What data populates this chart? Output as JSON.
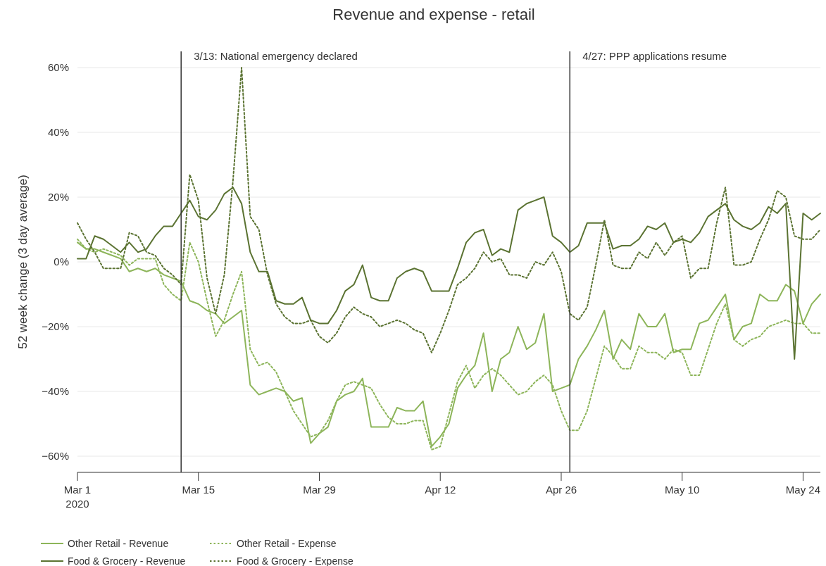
{
  "chart_data": {
    "type": "line",
    "title": "Revenue and expense - retail",
    "ylabel": "52 week change (3 day average)",
    "x": [
      "2020-03-01",
      "2020-03-02",
      "2020-03-03",
      "2020-03-04",
      "2020-03-05",
      "2020-03-06",
      "2020-03-07",
      "2020-03-08",
      "2020-03-09",
      "2020-03-10",
      "2020-03-11",
      "2020-03-12",
      "2020-03-13",
      "2020-03-14",
      "2020-03-15",
      "2020-03-16",
      "2020-03-17",
      "2020-03-18",
      "2020-03-19",
      "2020-03-20",
      "2020-03-21",
      "2020-03-22",
      "2020-03-23",
      "2020-03-24",
      "2020-03-25",
      "2020-03-26",
      "2020-03-27",
      "2020-03-28",
      "2020-03-29",
      "2020-03-30",
      "2020-03-31",
      "2020-04-01",
      "2020-04-02",
      "2020-04-03",
      "2020-04-04",
      "2020-04-05",
      "2020-04-06",
      "2020-04-07",
      "2020-04-08",
      "2020-04-09",
      "2020-04-10",
      "2020-04-11",
      "2020-04-12",
      "2020-04-13",
      "2020-04-14",
      "2020-04-15",
      "2020-04-16",
      "2020-04-17",
      "2020-04-18",
      "2020-04-19",
      "2020-04-20",
      "2020-04-21",
      "2020-04-22",
      "2020-04-23",
      "2020-04-24",
      "2020-04-25",
      "2020-04-26",
      "2020-04-27",
      "2020-04-28",
      "2020-04-29",
      "2020-04-30",
      "2020-05-01",
      "2020-05-02",
      "2020-05-03",
      "2020-05-04",
      "2020-05-05",
      "2020-05-06",
      "2020-05-07",
      "2020-05-08",
      "2020-05-09",
      "2020-05-10",
      "2020-05-11",
      "2020-05-12",
      "2020-05-13",
      "2020-05-14",
      "2020-05-15",
      "2020-05-16",
      "2020-05-17",
      "2020-05-18",
      "2020-05-19",
      "2020-05-20",
      "2020-05-21",
      "2020-05-22",
      "2020-05-23",
      "2020-05-24",
      "2020-05-25",
      "2020-05-26"
    ],
    "series": [
      {
        "name": "Other Retail - Revenue",
        "color": "#8db55a",
        "line_style": "solid",
        "values": [
          6,
          4,
          4,
          3,
          2,
          1,
          -3,
          -2,
          -3,
          -2,
          -4,
          -5,
          -6,
          -12,
          -13,
          -15,
          -16,
          -19,
          -17,
          -15,
          -38,
          -41,
          -40,
          -39,
          -40,
          -43,
          -42,
          -56,
          -53,
          -51,
          -43,
          -41,
          -40,
          -36,
          -51,
          -51,
          -51,
          -45,
          -46,
          -46,
          -43,
          -57,
          -54,
          -50,
          -39,
          -35,
          -32,
          -22,
          -40,
          -30,
          -28,
          -20,
          -27,
          -25,
          -16,
          -40,
          -39,
          -38,
          -30,
          -26,
          -21,
          -15,
          -30,
          -24,
          -27,
          -16,
          -20,
          -20,
          -16,
          -28,
          -27,
          -27,
          -19,
          -18,
          -14,
          -10,
          -24,
          -20,
          -19,
          -10,
          -12,
          -12,
          -7,
          -9,
          -19,
          -13,
          -10
        ]
      },
      {
        "name": "Other Retail - Expense",
        "color": "#8db55a",
        "line_style": "dotted",
        "values": [
          7,
          4,
          3,
          4,
          3,
          2,
          -1,
          1,
          1,
          1,
          -7,
          -10,
          -12,
          6,
          0,
          -12,
          -23,
          -18,
          -10,
          -3,
          -27,
          -32,
          -31,
          -34,
          -40,
          -46,
          -50,
          -54,
          -53,
          -49,
          -43,
          -38,
          -37,
          -38,
          -39,
          -44,
          -48,
          -50,
          -50,
          -49,
          -49,
          -58,
          -57,
          -47,
          -37,
          -32,
          -39,
          -35,
          -33,
          -35,
          -38,
          -41,
          -40,
          -37,
          -35,
          -38,
          -46,
          -52,
          -52,
          -46,
          -36,
          -26,
          -29,
          -33,
          -33,
          -26,
          -28,
          -28,
          -30,
          -27,
          -28,
          -35,
          -35,
          -27,
          -19,
          -13,
          -24,
          -26,
          -24,
          -23,
          -20,
          -19,
          -18,
          -19,
          -19,
          -22,
          -22
        ]
      },
      {
        "name": "Food & Grocery - Revenue",
        "color": "#5b7332",
        "line_style": "solid",
        "values": [
          1,
          1,
          8,
          7,
          5,
          3,
          6,
          3,
          4,
          8,
          11,
          11,
          15,
          19,
          14,
          13,
          16,
          21,
          23,
          18,
          3,
          -3,
          -3,
          -12,
          -13,
          -13,
          -11,
          -18,
          -19,
          -19,
          -15,
          -9,
          -7,
          -1,
          -11,
          -12,
          -12,
          -5,
          -3,
          -2,
          -3,
          -9,
          -9,
          -9,
          -2,
          6,
          9,
          10,
          2,
          4,
          3,
          16,
          18,
          19,
          20,
          8,
          6,
          3,
          5,
          12,
          12,
          12,
          4,
          5,
          5,
          7,
          11,
          10,
          12,
          6,
          7,
          6,
          9,
          14,
          16,
          18,
          13,
          11,
          10,
          12,
          17,
          15,
          18,
          -30,
          15,
          13,
          15
        ]
      },
      {
        "name": "Food & Grocery - Expense",
        "color": "#5b7332",
        "line_style": "dotted",
        "values": [
          12,
          7,
          3,
          -2,
          -2,
          -2,
          9,
          8,
          3,
          2,
          -2,
          -4,
          -7,
          27,
          19,
          -5,
          -16,
          -4,
          25,
          60,
          14,
          10,
          -4,
          -13,
          -17,
          -19,
          -19,
          -18,
          -23,
          -25,
          -22,
          -17,
          -14,
          -16,
          -17,
          -20,
          -19,
          -18,
          -19,
          -21,
          -22,
          -28,
          -22,
          -15,
          -7,
          -5,
          -2,
          3,
          0,
          1,
          -4,
          -4,
          -5,
          0,
          -1,
          3,
          -3,
          -16,
          -18,
          -14,
          -1,
          13,
          -1,
          -2,
          -2,
          3,
          1,
          6,
          2,
          6,
          8,
          -5,
          -2,
          -2,
          12,
          23,
          -1,
          -1,
          0,
          7,
          13,
          22,
          20,
          8,
          7,
          7,
          10
        ]
      }
    ],
    "xlim": [
      "2020-03-01",
      "2020-05-26"
    ],
    "xticks": [
      {
        "value": "2020-03-01",
        "label": "Mar 1\n2020"
      },
      {
        "value": "2020-03-15",
        "label": "Mar 15"
      },
      {
        "value": "2020-03-29",
        "label": "Mar 29"
      },
      {
        "value": "2020-04-12",
        "label": "Apr 12"
      },
      {
        "value": "2020-04-26",
        "label": "Apr 26"
      },
      {
        "value": "2020-05-10",
        "label": "May 10"
      },
      {
        "value": "2020-05-24",
        "label": "May 24"
      }
    ],
    "ylim": [
      -65,
      65
    ],
    "yticks": [
      {
        "value": -60,
        "label": "−60%"
      },
      {
        "value": -40,
        "label": "−40%"
      },
      {
        "value": -20,
        "label": "−20%"
      },
      {
        "value": 0,
        "label": "0%"
      },
      {
        "value": 20,
        "label": "20%"
      },
      {
        "value": 40,
        "label": "40%"
      },
      {
        "value": 60,
        "label": "60%"
      }
    ],
    "ref_lines": [
      {
        "axis": "x",
        "value": "2020-03-13",
        "label": "3/13: National emergency declared",
        "color": "#333333"
      },
      {
        "axis": "x",
        "value": "2020-04-27",
        "label": "4/27: PPP applications resume",
        "color": "#333333"
      }
    ],
    "grid": "y",
    "legend": "bottom"
  }
}
